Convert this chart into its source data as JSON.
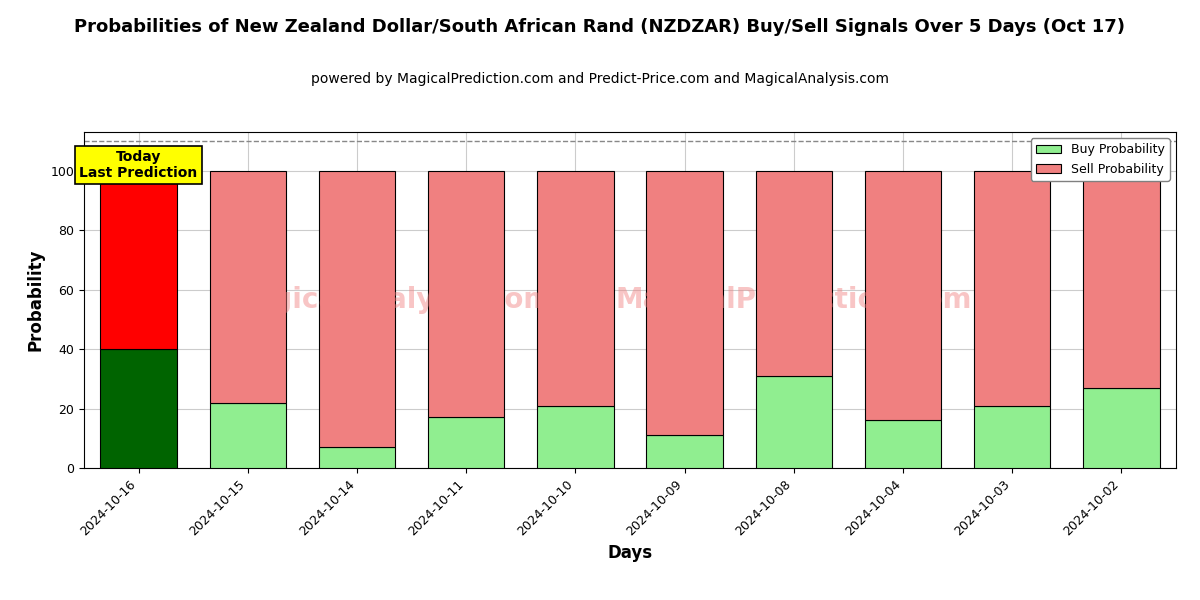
{
  "title": "Probabilities of New Zealand Dollar/South African Rand (NZDZAR) Buy/Sell Signals Over 5 Days (Oct 17)",
  "subtitle": "powered by MagicalPrediction.com and Predict-Price.com and MagicalAnalysis.com",
  "xlabel": "Days",
  "ylabel": "Probability",
  "categories": [
    "2024-10-16",
    "2024-10-15",
    "2024-10-14",
    "2024-10-11",
    "2024-10-10",
    "2024-10-09",
    "2024-10-08",
    "2024-10-04",
    "2024-10-03",
    "2024-10-02"
  ],
  "buy_values": [
    40,
    22,
    7,
    17,
    21,
    11,
    31,
    16,
    21,
    27
  ],
  "sell_values": [
    60,
    78,
    93,
    83,
    79,
    89,
    69,
    84,
    79,
    73
  ],
  "today_bar_buy_color": "#006400",
  "today_bar_sell_color": "#ff0000",
  "other_bar_buy_color": "#90EE90",
  "other_bar_sell_color": "#F08080",
  "bar_edge_color": "#000000",
  "bar_width": 0.7,
  "ylim": [
    0,
    113
  ],
  "yticks": [
    0,
    20,
    40,
    60,
    80,
    100
  ],
  "dashed_line_y": 110,
  "dashed_line_color": "#888888",
  "grid_color": "#cccccc",
  "legend_buy_color": "#90EE90",
  "legend_sell_color": "#F08080",
  "today_label": "Today\nLast Prediction",
  "today_label_bg": "#ffff00",
  "watermark_text1": "MagicalAnalysis.com",
  "watermark_text2": "MagicalPrediction.com",
  "watermark_color": "#F08080",
  "watermark_alpha": 0.45,
  "title_fontsize": 13,
  "subtitle_fontsize": 10,
  "axis_label_fontsize": 12,
  "tick_fontsize": 9
}
